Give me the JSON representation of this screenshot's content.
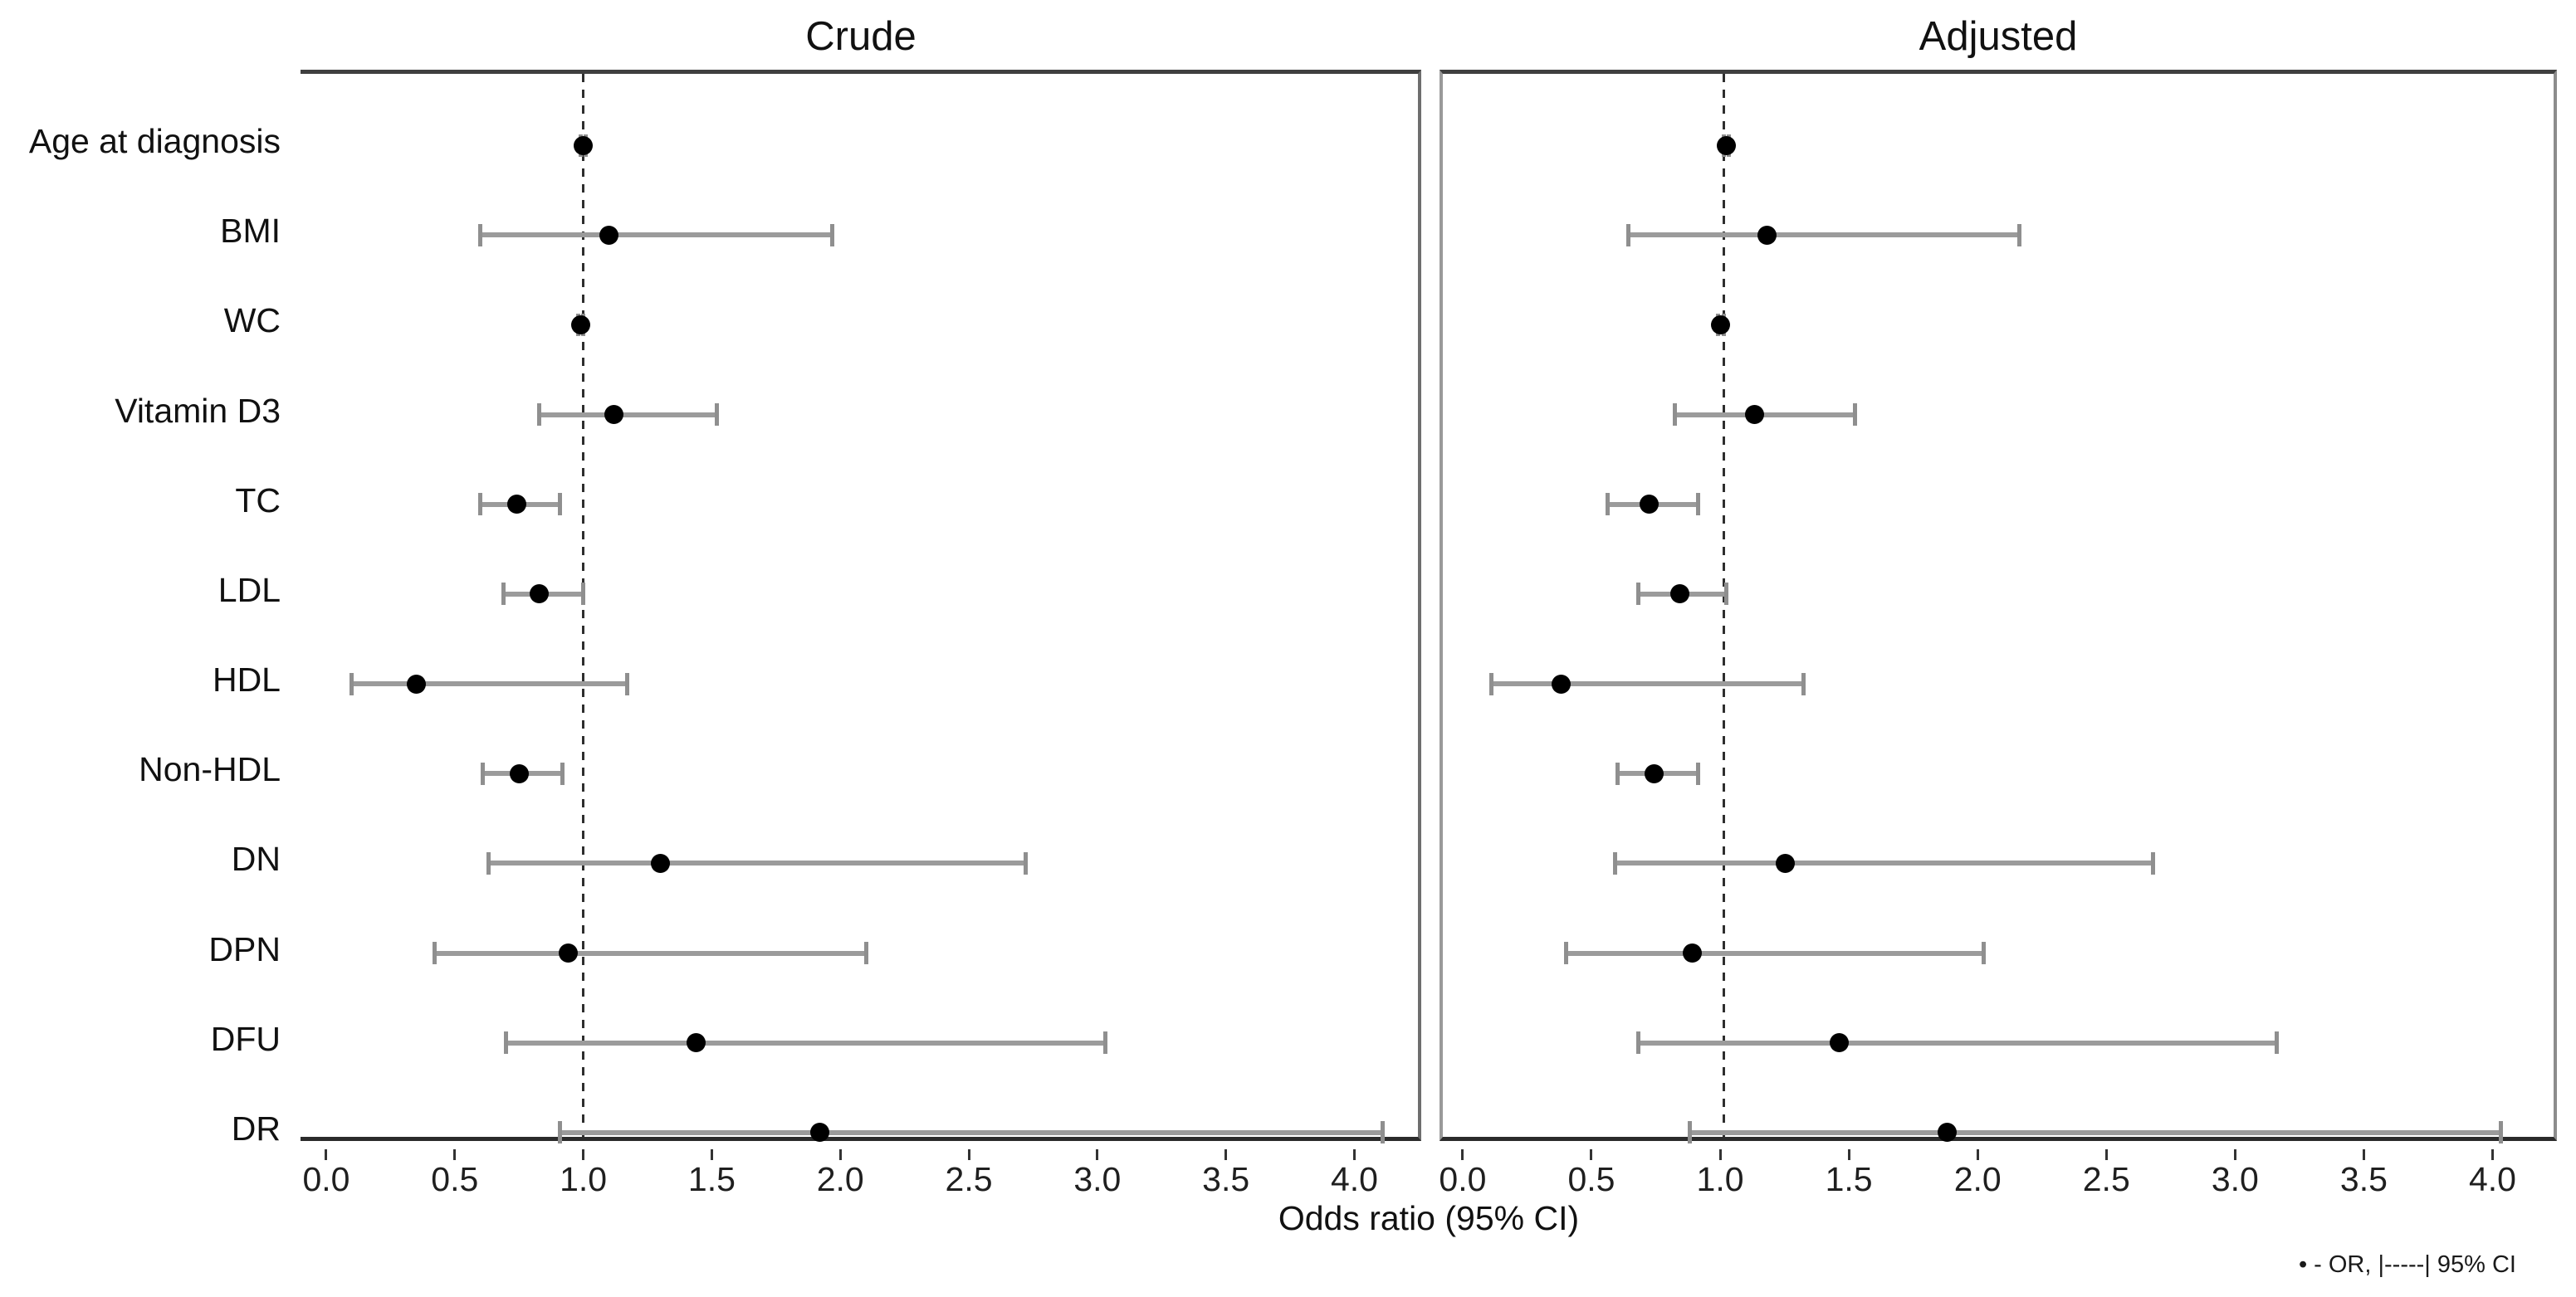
{
  "figure": {
    "x_axis_label": "Odds ratio (95% CI)",
    "legend": "• - OR, |-----| 95% CI"
  },
  "chart_data": {
    "type": "scatter",
    "subtype": "forest-plot-dot-with-95ci",
    "categories": [
      "Age at diagnosis",
      "BMI",
      "WC",
      "Vitamin D3",
      "TC",
      "LDL",
      "HDL",
      "Non-HDL",
      "DN",
      "DPN",
      "DFU",
      "DR"
    ],
    "x_ticks": [
      0.0,
      0.5,
      1.0,
      1.5,
      2.0,
      2.5,
      3.0,
      3.5,
      4.0
    ],
    "x_tick_labels": [
      "0.0",
      "0.5",
      "1.0",
      "1.5",
      "2.0",
      "2.5",
      "3.0",
      "3.5",
      "4.0"
    ],
    "reference_line_x": 1.0,
    "xlabel": "Odds ratio (95% CI)",
    "legend_note": "• - OR, |-----| 95% CI",
    "grid": false,
    "panels": [
      {
        "title": "Crude",
        "xlim": [
          -0.1,
          4.26
        ],
        "points": [
          {
            "label": "Age at diagnosis",
            "or": 1.0,
            "lo": 0.99,
            "hi": 1.01
          },
          {
            "label": "BMI",
            "or": 1.1,
            "lo": 0.6,
            "hi": 1.97
          },
          {
            "label": "WC",
            "or": 0.99,
            "lo": 0.98,
            "hi": 1.0
          },
          {
            "label": "Vitamin D3",
            "or": 1.12,
            "lo": 0.83,
            "hi": 1.52
          },
          {
            "label": "TC",
            "or": 0.74,
            "lo": 0.6,
            "hi": 0.91
          },
          {
            "label": "LDL",
            "or": 0.83,
            "lo": 0.69,
            "hi": 1.0
          },
          {
            "label": "HDL",
            "or": 0.35,
            "lo": 0.1,
            "hi": 1.17
          },
          {
            "label": "Non-HDL",
            "or": 0.75,
            "lo": 0.61,
            "hi": 0.92
          },
          {
            "label": "DN",
            "or": 1.3,
            "lo": 0.63,
            "hi": 2.72
          },
          {
            "label": "DPN",
            "or": 0.94,
            "lo": 0.42,
            "hi": 2.1
          },
          {
            "label": "DFU",
            "or": 1.44,
            "lo": 0.7,
            "hi": 3.03
          },
          {
            "label": "DR",
            "or": 1.92,
            "lo": 0.91,
            "hi": 4.11
          }
        ]
      },
      {
        "title": "Adjusted",
        "xlim": [
          -0.09,
          4.25
        ],
        "points": [
          {
            "label": "Age at diagnosis",
            "or": 1.01,
            "lo": 1.0,
            "hi": 1.02
          },
          {
            "label": "BMI",
            "or": 1.17,
            "lo": 0.63,
            "hi": 2.15
          },
          {
            "label": "WC",
            "or": 0.99,
            "lo": 0.98,
            "hi": 1.0
          },
          {
            "label": "Vitamin D3",
            "or": 1.12,
            "lo": 0.81,
            "hi": 1.51
          },
          {
            "label": "TC",
            "or": 0.71,
            "lo": 0.55,
            "hi": 0.9
          },
          {
            "label": "LDL",
            "or": 0.83,
            "lo": 0.67,
            "hi": 1.01
          },
          {
            "label": "HDL",
            "or": 0.37,
            "lo": 0.1,
            "hi": 1.31
          },
          {
            "label": "Non-HDL",
            "or": 0.73,
            "lo": 0.59,
            "hi": 0.9
          },
          {
            "label": "DN",
            "or": 1.24,
            "lo": 0.58,
            "hi": 2.67
          },
          {
            "label": "DPN",
            "or": 0.88,
            "lo": 0.39,
            "hi": 2.01
          },
          {
            "label": "DFU",
            "or": 1.45,
            "lo": 0.67,
            "hi": 3.15
          },
          {
            "label": "DR",
            "or": 1.87,
            "lo": 0.87,
            "hi": 4.02
          }
        ]
      }
    ],
    "colors": {
      "point": "#000000",
      "ci_bar": "#9b9b9b",
      "ci_cap": "#8f8f8f",
      "reference_line": "#2e2e2e",
      "panel_border": "#3f3f3f",
      "text": "#111111"
    }
  }
}
